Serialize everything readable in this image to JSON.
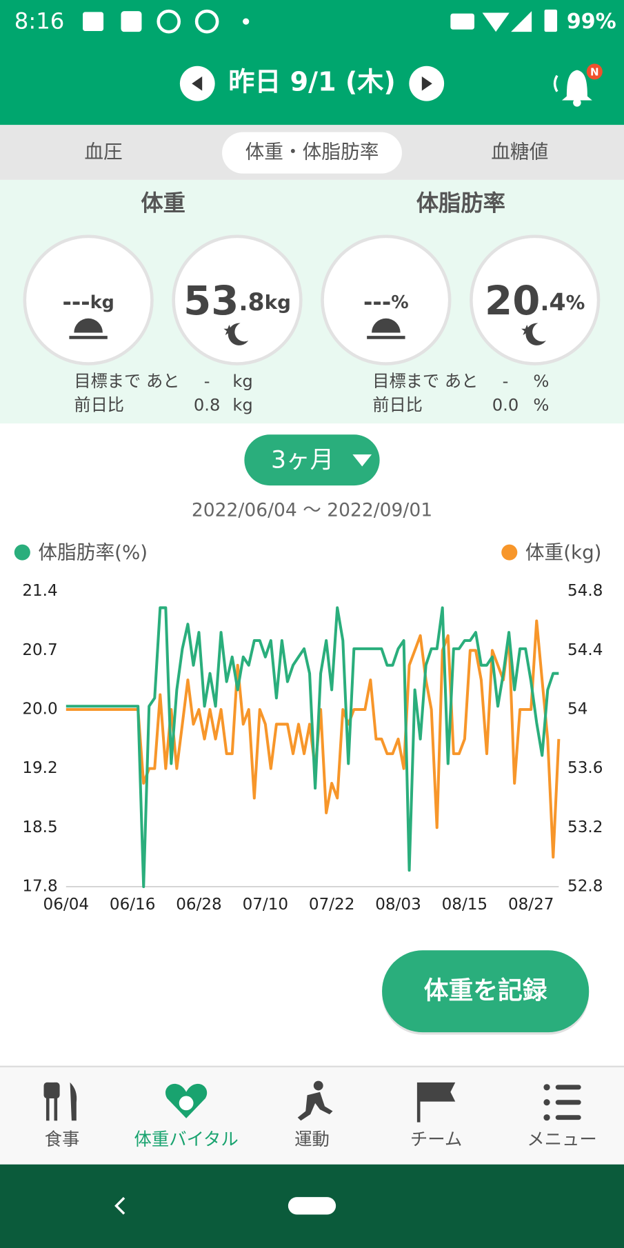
{
  "status_bar": {
    "time": "8:16",
    "battery": "99%"
  },
  "header": {
    "date": "昨日 9/1 (木)",
    "badge": "N"
  },
  "tabs": [
    "血圧",
    "体重・体脂肪率",
    "血糖値"
  ],
  "stats": {
    "weight": {
      "title": "体重",
      "morning_value": "---",
      "morning_unit": "kg",
      "evening_integer": "53",
      "evening_fraction": ".8",
      "evening_unit": "kg",
      "goal_label": "目標まで あと",
      "goal_value": "-",
      "goal_unit": "kg",
      "diff_label": "前日比",
      "diff_value": "0.8",
      "diff_unit": "kg"
    },
    "body_fat": {
      "title": "体脂肪率",
      "morning_value": "---",
      "morning_unit": "%",
      "evening_integer": "20",
      "evening_fraction": ".4",
      "evening_unit": "%",
      "goal_label": "目標まで あと",
      "goal_value": "-",
      "goal_unit": "%",
      "diff_label": "前日比",
      "diff_value": "0.0",
      "diff_unit": "%"
    }
  },
  "period": "3ヶ月",
  "range": "2022/06/04 〜 2022/09/01",
  "chart_data": {
    "type": "line",
    "x": [
      "06/04",
      "06/05",
      "06/06",
      "06/07",
      "06/08",
      "06/09",
      "06/10",
      "06/11",
      "06/12",
      "06/13",
      "06/14",
      "06/15",
      "06/16",
      "06/17",
      "06/18",
      "06/19",
      "06/20",
      "06/21",
      "06/22",
      "06/23",
      "06/24",
      "06/25",
      "06/26",
      "06/27",
      "06/28",
      "06/29",
      "06/30",
      "07/01",
      "07/02",
      "07/03",
      "07/04",
      "07/05",
      "07/06",
      "07/07",
      "07/08",
      "07/09",
      "07/10",
      "07/11",
      "07/12",
      "07/13",
      "07/14",
      "07/15",
      "07/16",
      "07/17",
      "07/18",
      "07/19",
      "07/20",
      "07/21",
      "07/22",
      "07/23",
      "07/24",
      "07/25",
      "07/26",
      "07/27",
      "07/28",
      "07/29",
      "07/30",
      "07/31",
      "08/01",
      "08/02",
      "08/03",
      "08/04",
      "08/05",
      "08/06",
      "08/07",
      "08/08",
      "08/09",
      "08/10",
      "08/11",
      "08/12",
      "08/13",
      "08/14",
      "08/15",
      "08/16",
      "08/17",
      "08/18",
      "08/19",
      "08/20",
      "08/21",
      "08/22",
      "08/23",
      "08/24",
      "08/25",
      "08/26",
      "08/27",
      "08/28",
      "08/29",
      "08/30",
      "08/31",
      "09/01"
    ],
    "xticks": [
      "06/04",
      "06/16",
      "06/28",
      "07/10",
      "07/22",
      "08/03",
      "08/15",
      "08/27"
    ],
    "series": [
      {
        "name": "体脂肪率(%)",
        "color": "#2aae7c",
        "axis": "y",
        "values": [
          20.0,
          20.0,
          20.0,
          20.0,
          20.0,
          20.0,
          20.0,
          20.0,
          20.0,
          20.0,
          20.0,
          20.0,
          20.0,
          20.0,
          17.8,
          20.0,
          20.1,
          21.2,
          21.2,
          19.3,
          20.2,
          20.7,
          21.0,
          20.5,
          20.9,
          20.0,
          20.4,
          20.0,
          20.9,
          20.3,
          20.6,
          20.2,
          20.6,
          20.5,
          20.8,
          20.8,
          20.6,
          20.8,
          20.1,
          20.8,
          20.3,
          20.5,
          20.6,
          20.7,
          20.4,
          19.0,
          20.4,
          20.8,
          20.2,
          21.2,
          20.8,
          19.3,
          20.7,
          20.7,
          20.7,
          20.7,
          20.7,
          20.7,
          20.5,
          20.5,
          20.7,
          20.8,
          18.0,
          20.2,
          19.6,
          20.5,
          20.7,
          20.7,
          21.2,
          19.3,
          20.7,
          20.7,
          20.8,
          20.8,
          20.9,
          20.5,
          20.5,
          20.6,
          20.0,
          20.4,
          20.9,
          20.2,
          20.7,
          20.7,
          20.3,
          19.8,
          19.4,
          20.2,
          20.4,
          20.4
        ]
      },
      {
        "name": "体重(kg)",
        "color": "#f7962a",
        "axis": "y2",
        "values": [
          54.0,
          54.0,
          54.0,
          54.0,
          54.0,
          54.0,
          54.0,
          54.0,
          54.0,
          54.0,
          54.0,
          54.0,
          54.0,
          54.0,
          53.5,
          53.6,
          53.6,
          54.1,
          53.6,
          54.0,
          53.6,
          53.9,
          54.2,
          53.9,
          54.0,
          53.8,
          54.0,
          53.8,
          54.0,
          53.7,
          53.7,
          54.3,
          53.9,
          54.0,
          53.4,
          54.0,
          53.9,
          53.6,
          53.9,
          53.9,
          53.9,
          53.7,
          53.9,
          53.7,
          53.9,
          53.6,
          54.0,
          53.3,
          53.5,
          53.4,
          54.0,
          53.9,
          54.0,
          54.0,
          54.0,
          54.2,
          53.8,
          53.8,
          53.7,
          53.7,
          53.8,
          53.6,
          54.3,
          54.4,
          54.5,
          54.2,
          54.0,
          53.2,
          54.4,
          54.5,
          53.7,
          53.7,
          53.8,
          54.4,
          54.4,
          54.2,
          53.7,
          54.4,
          54.3,
          54.2,
          54.5,
          53.5,
          54.0,
          54.0,
          54.0,
          54.6,
          54.2,
          53.8,
          53.0,
          53.8
        ]
      }
    ],
    "ylim": [
      17.8,
      21.4
    ],
    "yticks": [
      17.8,
      {
        "value": 18.52,
        "label": "18.5"
      },
      {
        "value": 19.24,
        "label": "19.2"
      },
      {
        "value": 19.96,
        "label": "20.0"
      },
      {
        "value": 20.68,
        "label": "20.7"
      },
      21.4
    ],
    "y2lim": [
      52.8,
      54.8
    ],
    "y2ticks": [
      52.8,
      53.2,
      53.6,
      54.0,
      54.4,
      54.8
    ]
  },
  "record_button": "体重を記録",
  "nav": [
    "食事",
    "体重バイタル",
    "運動",
    "チーム",
    "メニュー"
  ]
}
